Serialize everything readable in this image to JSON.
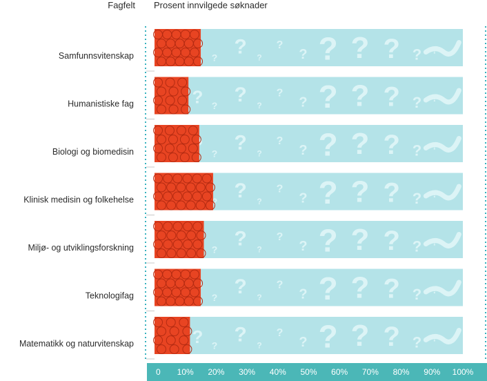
{
  "header": {
    "field_label": "Fagfelt",
    "value_label": "Prosent innvilgede søknader"
  },
  "colors": {
    "funded": "#e84422",
    "track": "#b4e3e8",
    "axis_band": "#4bb7b7",
    "guide": "#36b1be",
    "separator": "#c8c8c8",
    "tick_text": "#ffffff"
  },
  "chart_data": {
    "type": "bar",
    "orientation": "horizontal",
    "title": "",
    "xlabel": "Prosent innvilgede søknader",
    "ylabel": "Fagfelt",
    "categories": [
      "Samfunnsvitenskap",
      "Humanistiske fag",
      "Biologi og biomedisin",
      "Klinisk medisin og folkehelse",
      "Miljø- og utviklingsforskning",
      "Teknologifag",
      "Matematikk og naturvitenskap"
    ],
    "values": [
      15,
      11,
      14.5,
      19,
      16,
      15,
      11.5
    ],
    "xlim": [
      0,
      100
    ],
    "ticks": [
      0,
      10,
      20,
      30,
      40,
      50,
      60,
      70,
      80,
      90,
      100
    ],
    "tick_labels": [
      "0",
      "10%",
      "20%",
      "30%",
      "40%",
      "50%",
      "60%",
      "70%",
      "80%",
      "90%",
      "100%"
    ],
    "grid": false,
    "legend": "none"
  }
}
